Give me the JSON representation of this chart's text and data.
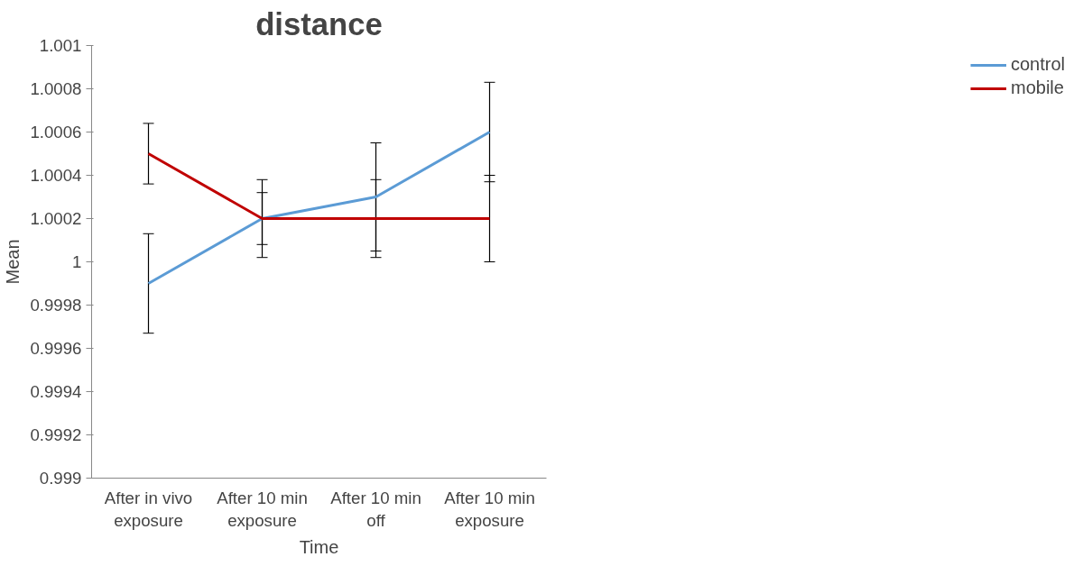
{
  "chart_data": {
    "type": "line",
    "title": "distance",
    "xlabel": "Time",
    "ylabel": "Mean",
    "categories": [
      "After in vivo exposure",
      "After 10 min exposure",
      "After 10 min off",
      "After 10 min exposure"
    ],
    "series": [
      {
        "name": "control",
        "color": "#5b9bd5",
        "values": [
          0.9999,
          1.0002,
          1.0003,
          1.0006
        ],
        "errors": [
          0.00023,
          0.00018,
          0.00025,
          0.00023
        ]
      },
      {
        "name": "mobile",
        "color": "#c00000",
        "values": [
          1.0005,
          1.0002,
          1.0002,
          1.0002
        ],
        "errors": [
          0.00014,
          0.00012,
          0.00018,
          0.0002
        ]
      }
    ],
    "ylim": [
      0.999,
      1.001
    ],
    "yticks": [
      0.999,
      0.9992,
      0.9994,
      0.9996,
      0.9998,
      1,
      1.0002,
      1.0004,
      1.0006,
      1.0008,
      1.001
    ],
    "grid": false,
    "legend": "right",
    "marker": "none",
    "line_style": "solid"
  }
}
